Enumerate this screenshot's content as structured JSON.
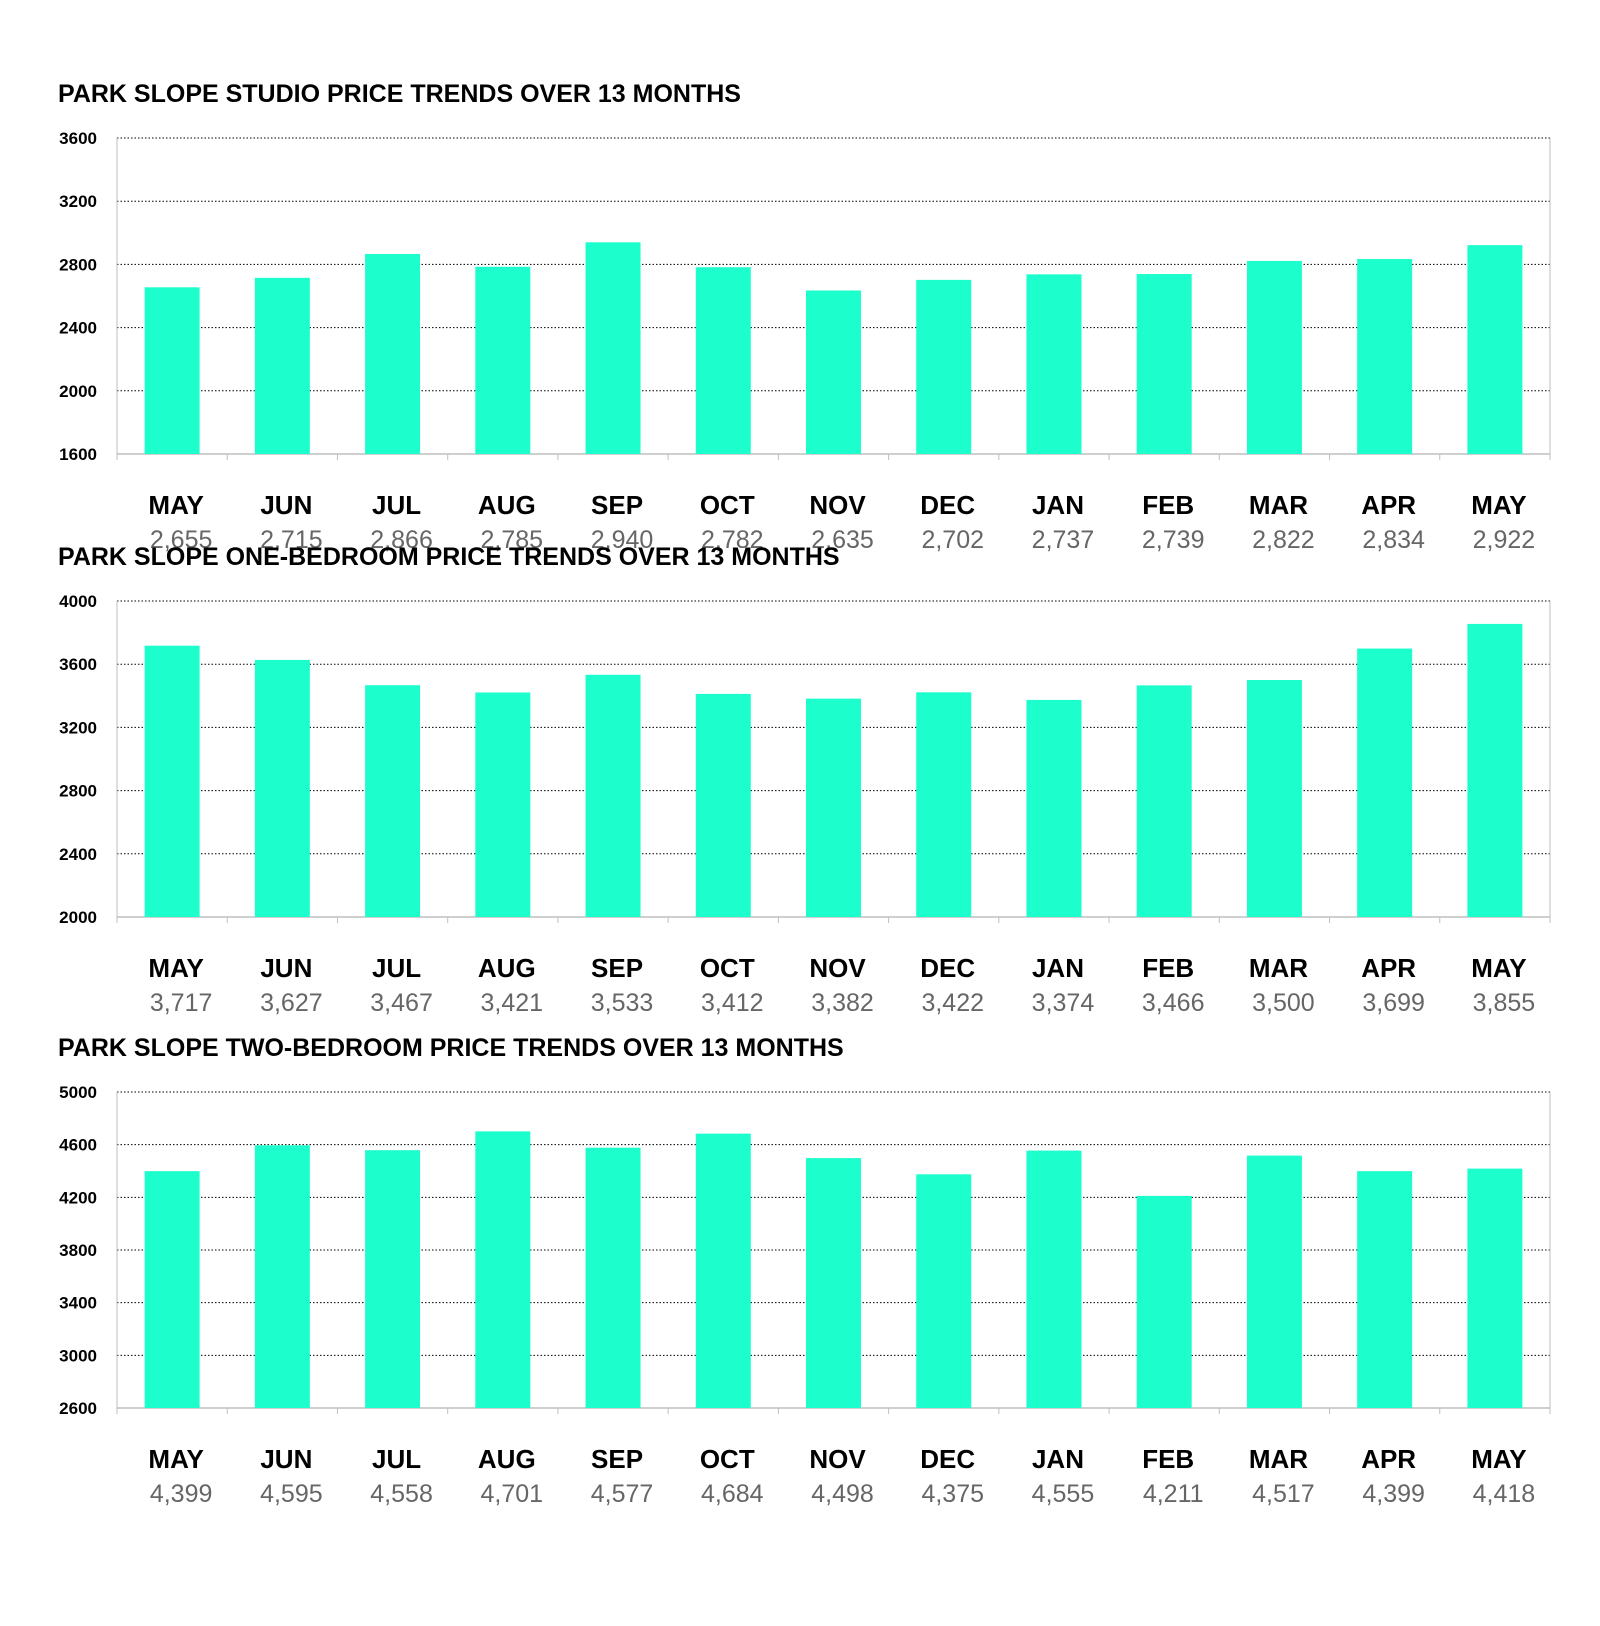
{
  "colors": {
    "bar": "#1cffcc",
    "grid": "#000000",
    "axis": "#bfbfbf",
    "value_text": "#666666"
  },
  "chart_data": [
    {
      "type": "bar",
      "title": "PARK SLOPE STUDIO PRICE TRENDS OVER 13 MONTHS",
      "categories": [
        "MAY",
        "JUN",
        "JUL",
        "AUG",
        "SEP",
        "OCT",
        "NOV",
        "DEC",
        "JAN",
        "FEB",
        "MAR",
        "APR",
        "MAY"
      ],
      "values": [
        2655,
        2715,
        2866,
        2785,
        2940,
        2782,
        2635,
        2702,
        2737,
        2739,
        2822,
        2834,
        2922
      ],
      "value_labels": [
        "2,655",
        "2,715",
        "2,866",
        "2,785",
        "2,940",
        "2,782",
        "2,635",
        "2,702",
        "2,737",
        "2,739",
        "2,822",
        "2,834",
        "2,922"
      ],
      "yticks": [
        "1600",
        "2000",
        "2400",
        "2800",
        "3200",
        "3600"
      ],
      "ylim": [
        1600,
        3600
      ],
      "grid": true,
      "xlabel": "",
      "ylabel": ""
    },
    {
      "type": "bar",
      "title": "PARK SLOPE ONE-BEDROOM PRICE TRENDS OVER 13 MONTHS",
      "categories": [
        "MAY",
        "JUN",
        "JUL",
        "AUG",
        "SEP",
        "OCT",
        "NOV",
        "DEC",
        "JAN",
        "FEB",
        "MAR",
        "APR",
        "MAY"
      ],
      "values": [
        3717,
        3627,
        3467,
        3421,
        3533,
        3412,
        3382,
        3422,
        3374,
        3466,
        3500,
        3699,
        3855
      ],
      "value_labels": [
        "3,717",
        "3,627",
        "3,467",
        "3,421",
        "3,533",
        "3,412",
        "3,382",
        "3,422",
        "3,374",
        "3,466",
        "3,500",
        "3,699",
        "3,855"
      ],
      "yticks": [
        "2000",
        "2400",
        "2800",
        "3200",
        "3600",
        "4000"
      ],
      "ylim": [
        2000,
        4000
      ],
      "grid": true,
      "xlabel": "",
      "ylabel": ""
    },
    {
      "type": "bar",
      "title": "PARK SLOPE TWO-BEDROOM PRICE TRENDS OVER 13 MONTHS",
      "categories": [
        "MAY",
        "JUN",
        "JUL",
        "AUG",
        "SEP",
        "OCT",
        "NOV",
        "DEC",
        "JAN",
        "FEB",
        "MAR",
        "APR",
        "MAY"
      ],
      "values": [
        4399,
        4595,
        4558,
        4701,
        4577,
        4684,
        4498,
        4375,
        4555,
        4211,
        4517,
        4399,
        4418
      ],
      "value_labels": [
        "4,399",
        "4,595",
        "4,558",
        "4,701",
        "4,577",
        "4,684",
        "4,498",
        "4,375",
        "4,555",
        "4,211",
        "4,517",
        "4,399",
        "4,418"
      ],
      "yticks": [
        "2600",
        "3000",
        "3400",
        "3800",
        "4200",
        "4600",
        "5000"
      ],
      "ylim": [
        2600,
        5000
      ],
      "grid": true,
      "xlabel": "",
      "ylabel": ""
    }
  ]
}
